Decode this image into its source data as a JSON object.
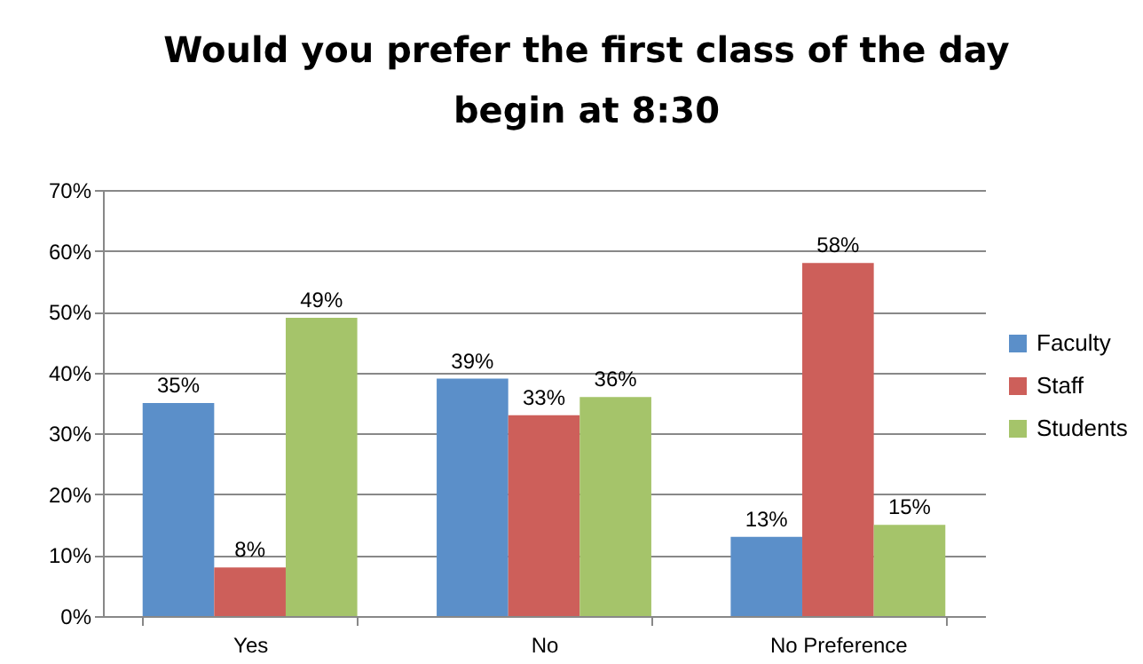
{
  "chart_data": {
    "type": "bar",
    "title": "Would you prefer the first class of the day begin at 8:30",
    "categories": [
      "Yes",
      "No",
      "No Preference"
    ],
    "series": [
      {
        "name": "Faculty",
        "color": "#5b8fc9",
        "values": [
          35,
          39,
          13
        ],
        "value_labels": [
          "35%",
          "39%",
          "13%"
        ]
      },
      {
        "name": "Staff",
        "color": "#cd5f5a",
        "values": [
          8,
          33,
          58
        ],
        "value_labels": [
          "8%",
          "33%",
          "58%"
        ]
      },
      {
        "name": "Students",
        "color": "#a5c46a",
        "values": [
          49,
          36,
          15
        ],
        "value_labels": [
          "49%",
          "36%",
          "15%"
        ]
      }
    ],
    "ylim": [
      0,
      70
    ],
    "yticks": [
      {
        "value": 0,
        "label": "0%"
      },
      {
        "value": 10,
        "label": "10%"
      },
      {
        "value": 20,
        "label": "20%"
      },
      {
        "value": 30,
        "label": "30%"
      },
      {
        "value": 40,
        "label": "40%"
      },
      {
        "value": 50,
        "label": "50%"
      },
      {
        "value": 60,
        "label": "60%"
      },
      {
        "value": 70,
        "label": "70%"
      }
    ],
    "grid": "y",
    "legend": "right"
  }
}
